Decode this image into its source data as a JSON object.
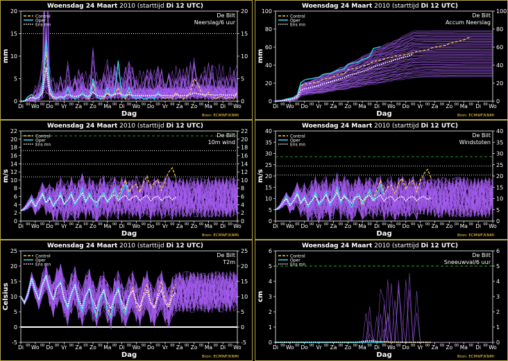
{
  "header": {
    "prefix": "Woensdag",
    "date": "24 Maart",
    "year": "2010",
    "run": "(starttijd",
    "run_bold": "Di 12 UTC)"
  },
  "location": "De Bilt",
  "source": "Bron: ECMWF/KNMI",
  "xlabel": "Dag",
  "day_labels": [
    "Di",
    "Wo",
    "Do",
    "Vr",
    "Za",
    "Zo",
    "Ma",
    "Di",
    "Wo",
    "Do",
    "Vr",
    "Za",
    "Zo",
    "Ma",
    "Di",
    "Wo"
  ],
  "hour_label": "00",
  "legend": [
    "Control",
    "Oper",
    "Ens mn"
  ],
  "colors": {
    "background": "#000000",
    "frame": "#b8a84a",
    "ensemble": "#a45cf0",
    "control": "#ffd24a",
    "oper": "#2fd0e8",
    "ens_mean": "#ffffff",
    "threshold_green": "#22b022",
    "gridline": "#c8c8c8",
    "source": "#ffd24a"
  },
  "chart_data": [
    {
      "type": "line",
      "panel": "precip-6h",
      "variable": "Neerslag/6 uur",
      "ylabel": "mm",
      "ylim": [
        0,
        20
      ],
      "yticks": [
        0,
        5,
        10,
        15,
        20
      ],
      "threshold_lines": [
        {
          "value": 15,
          "style": "dotted",
          "color": "white"
        }
      ],
      "series": [
        {
          "name": "Control",
          "values": [
            0,
            0,
            0.5,
            1,
            0.5,
            1,
            2,
            11,
            2,
            0.5,
            0.5,
            1,
            0.5,
            3,
            1,
            0.5,
            1,
            2,
            1,
            0.5,
            4,
            1,
            0.5,
            0.5,
            2,
            1,
            1.5,
            3,
            1,
            0.5,
            2,
            1,
            0.5,
            1,
            0.5,
            0.5,
            1,
            0.5,
            2,
            1,
            0.5,
            1,
            0.5,
            2,
            1,
            0.5,
            1,
            2,
            5,
            4,
            2,
            1,
            2,
            1,
            0.5,
            1,
            1,
            0.5,
            1,
            0.5,
            2
          ]
        },
        {
          "name": "Oper",
          "values": [
            0,
            0,
            1,
            1.5,
            0.5,
            1,
            3,
            13.5,
            3,
            1,
            0.5,
            1,
            0.5,
            3,
            1,
            0.5,
            1,
            2,
            1,
            1,
            5,
            1,
            0.5,
            1,
            3,
            1,
            2,
            9,
            1,
            1,
            3,
            1,
            0.5,
            1,
            0.5,
            0.5,
            1,
            0.5,
            2,
            1
          ]
        },
        {
          "name": "Ens mn",
          "values": [
            0,
            0,
            0.5,
            0.8,
            0.6,
            0.8,
            1.8,
            7.5,
            1.8,
            0.9,
            0.8,
            1,
            0.9,
            1.5,
            1.2,
            1,
            1.2,
            1.5,
            1.2,
            1.1,
            2,
            1.3,
            1.1,
            1.1,
            1.6,
            1.3,
            1.5,
            1.8,
            1.4,
            1.3,
            1.5,
            1.3,
            1.2,
            1.3,
            1.2,
            1.2,
            1.3,
            1.2,
            1.5,
            1.3,
            1.2,
            1.3,
            1.2,
            1.4,
            1.3,
            1.2,
            1.3,
            1.5,
            1.8,
            1.7,
            1.5,
            1.4,
            1.5,
            1.4,
            1.3,
            1.4,
            1.4,
            1.3,
            1.4,
            1.3,
            1.5
          ]
        }
      ]
    },
    {
      "type": "line",
      "panel": "accum-precip",
      "variable": "Accum Neerslag",
      "ylabel": "mm",
      "ylim": [
        0,
        100
      ],
      "yticks": [
        0,
        20,
        40,
        60,
        80,
        100
      ],
      "threshold_lines": [],
      "series": [
        {
          "name": "Control",
          "values": [
            0,
            0,
            0.5,
            2,
            2.5,
            4,
            6,
            17,
            19,
            19.5,
            20,
            21,
            21.5,
            24,
            25,
            25.5,
            27,
            29,
            30,
            30.5,
            35,
            36,
            36.5,
            37,
            39,
            40,
            41.5,
            44,
            45,
            45.5,
            47,
            48,
            48.5,
            50,
            50.5,
            51,
            52,
            52.5,
            54,
            55,
            55.5,
            56.5,
            57,
            59,
            60,
            60.5,
            61.5,
            62,
            64,
            65,
            66,
            67,
            68,
            70,
            71
          ]
        },
        {
          "name": "Oper",
          "values": [
            0,
            0,
            1,
            2.5,
            3,
            4,
            7,
            20.5,
            23.5,
            24.5,
            25,
            26,
            26.5,
            29.5,
            30.5,
            31,
            32,
            34,
            35,
            36,
            41,
            42,
            42.5,
            43.5,
            46.5,
            47.5,
            49.5,
            58.5,
            59.5,
            60.5
          ]
        },
        {
          "name": "Ens mn",
          "values": [
            0,
            0,
            0.5,
            1.3,
            1.9,
            2.7,
            4.5,
            12,
            13.8,
            14.7,
            15.5,
            16.5,
            17.4,
            18.9,
            20.1,
            21.1,
            22.3,
            23.8,
            25,
            26.1,
            28.1,
            29.4,
            30.5,
            31.6,
            33.2,
            34.5,
            36,
            37.8,
            39.2,
            40.5,
            42,
            43.3,
            44.5,
            45.8,
            47,
            48.2,
            49.5,
            50.7,
            52.2
          ]
        }
      ]
    },
    {
      "type": "line",
      "panel": "wind-10m",
      "variable": "10m wind",
      "ylabel": "m/s",
      "ylim": [
        0,
        22
      ],
      "yticks": [
        0,
        2,
        4,
        6,
        8,
        10,
        12,
        14,
        16,
        18,
        20,
        22
      ],
      "threshold_lines": [
        {
          "value": 10.8,
          "style": "dotted",
          "color": "white"
        },
        {
          "value": 13.9,
          "style": "dotted",
          "color": "white"
        },
        {
          "value": 17.2,
          "style": "dotted",
          "color": "white"
        },
        {
          "value": 20.8,
          "style": "dashed",
          "color": "green"
        }
      ],
      "series": [
        {
          "name": "Control",
          "values": [
            2.5,
            3,
            4,
            5,
            3.5,
            5,
            6.5,
            4.5,
            5.5,
            3.5,
            5,
            6.5,
            4,
            5,
            6.5,
            4,
            5.5,
            8,
            5,
            6.5,
            5,
            3.5,
            6,
            6.5,
            4.5,
            6,
            7.5,
            6,
            8,
            10,
            7,
            8.5,
            9,
            7,
            9.5,
            11,
            8,
            9.5,
            10,
            7.5,
            10,
            12,
            13,
            10.5
          ]
        },
        {
          "name": "Oper",
          "values": [
            2.5,
            3,
            4,
            5.5,
            3.5,
            5,
            7,
            4.5,
            6,
            3.5,
            5,
            7,
            4,
            5,
            7,
            4,
            5.5,
            8,
            4.5,
            7,
            5,
            3.5,
            6,
            7,
            4.5,
            6.5,
            8,
            5,
            7,
            9,
            6
          ]
        },
        {
          "name": "Ens mn",
          "values": [
            2.5,
            3,
            4,
            5,
            3.5,
            5,
            6.5,
            4.5,
            5.5,
            3.8,
            5,
            6.2,
            4.3,
            5.2,
            6.3,
            4.5,
            5.5,
            6.8,
            4.8,
            6,
            5.2,
            4.5,
            5.8,
            6.2,
            4.8,
            5.8,
            6.5,
            5,
            5.8,
            6.3,
            5,
            5.8,
            6.2,
            5,
            5.8,
            6.2,
            5,
            5.8,
            6,
            5,
            5.8,
            6,
            5.2,
            5.8
          ]
        }
      ]
    },
    {
      "type": "line",
      "panel": "gusts",
      "variable": "Windstoten",
      "ylabel": "m/s",
      "ylim": [
        0,
        40
      ],
      "yticks": [
        0,
        5,
        10,
        15,
        20,
        25,
        30,
        35,
        40
      ],
      "threshold_lines": [
        {
          "value": 20.4,
          "style": "dotted",
          "color": "white"
        },
        {
          "value": 24.4,
          "style": "dotted",
          "color": "white"
        },
        {
          "value": 28.6,
          "style": "dashed",
          "color": "green"
        }
      ],
      "series": [
        {
          "name": "Control",
          "values": [
            5,
            6,
            8,
            10,
            7,
            9,
            12,
            8,
            10,
            6,
            9,
            12,
            7,
            9,
            12,
            7,
            10,
            14,
            8,
            11,
            9,
            6,
            10,
            11,
            7,
            10,
            13,
            10,
            14,
            18,
            12,
            15,
            16,
            12,
            17,
            19,
            14,
            17,
            18,
            13,
            18,
            21,
            23,
            19
          ]
        },
        {
          "name": "Oper",
          "values": [
            5,
            6,
            8,
            11,
            7,
            9,
            13,
            8,
            11,
            6,
            9,
            13,
            7,
            9,
            13,
            7,
            10,
            15,
            8,
            12,
            9,
            6,
            11,
            12,
            8,
            11,
            14,
            9,
            12,
            16,
            11
          ]
        },
        {
          "name": "Ens mn",
          "values": [
            5,
            6,
            8,
            10,
            7,
            9,
            12,
            8,
            10,
            7,
            9,
            11,
            8,
            9.5,
            11.5,
            8,
            10,
            12.5,
            9,
            11,
            9.5,
            8,
            10.5,
            11,
            9,
            10.5,
            11.5,
            9,
            10.5,
            11.5,
            9,
            10.5,
            11,
            9,
            10.5,
            11,
            9,
            10.5,
            11,
            9,
            10.5,
            11,
            9.5,
            10.5
          ]
        }
      ]
    },
    {
      "type": "line",
      "panel": "t2m",
      "variable": "T2m",
      "ylabel": "Celsius",
      "ylim": [
        -5,
        25
      ],
      "yticks": [
        -5,
        0,
        5,
        10,
        15,
        20,
        25
      ],
      "threshold_lines": [
        {
          "value": 0,
          "style": "solid",
          "color": "white"
        }
      ],
      "series": [
        {
          "name": "Control",
          "values": [
            10,
            8,
            11,
            16,
            12,
            9,
            14,
            17,
            12,
            9,
            13,
            15,
            9,
            6,
            11,
            14,
            8,
            5,
            10,
            13,
            7,
            4,
            9,
            12,
            6,
            4,
            10,
            13,
            7,
            5,
            10,
            13,
            7,
            5,
            11,
            14,
            8,
            6,
            11,
            15,
            9,
            7,
            12,
            14
          ]
        },
        {
          "name": "Oper",
          "values": [
            10,
            8,
            11,
            16,
            12,
            9,
            14,
            17,
            12,
            9,
            13,
            15,
            9,
            6,
            11,
            14,
            8,
            5,
            10,
            13,
            7,
            3,
            9,
            12,
            5,
            3,
            10,
            13,
            6,
            4,
            10
          ]
        },
        {
          "name": "Ens mn",
          "values": [
            10,
            8,
            11,
            16,
            12,
            9,
            14,
            16.5,
            12,
            9,
            13,
            14.5,
            9.5,
            7,
            11,
            13.5,
            9,
            6.5,
            10.5,
            12.5,
            8.5,
            6,
            10,
            12,
            8,
            6,
            10,
            12,
            8,
            6,
            10,
            12,
            8,
            6.5,
            10,
            12,
            8,
            6.5,
            10,
            12,
            8,
            6.5,
            10,
            11.5
          ]
        }
      ]
    },
    {
      "type": "line",
      "panel": "snow-6h",
      "variable": "Sneeuwval/6 uur",
      "ylabel": "cm",
      "ylim": [
        0,
        6
      ],
      "yticks": [
        0,
        1,
        2,
        3,
        4,
        5,
        6
      ],
      "threshold_lines": [
        {
          "value": 5,
          "style": "dashed",
          "color": "green"
        }
      ],
      "series": [
        {
          "name": "Control",
          "values": [
            0,
            0,
            0,
            0,
            0,
            0,
            0,
            0,
            0,
            0,
            0,
            0,
            0,
            0,
            0,
            0,
            0,
            0,
            0,
            0,
            0,
            0,
            0,
            0,
            0,
            0,
            0,
            0,
            0,
            0,
            0,
            0,
            0,
            0,
            0,
            0,
            0,
            0,
            0,
            0,
            0,
            0,
            0,
            0
          ]
        },
        {
          "name": "Oper",
          "values": [
            0,
            0,
            0,
            0,
            0,
            0,
            0,
            0,
            0,
            0,
            0,
            0,
            0,
            0,
            0,
            0,
            0,
            0,
            0,
            0,
            0,
            0,
            0,
            0,
            0,
            0,
            0,
            0,
            0,
            0,
            0
          ]
        },
        {
          "name": "Ens mn",
          "values": [
            0,
            0,
            0,
            0,
            0,
            0,
            0,
            0,
            0,
            0,
            0,
            0,
            0,
            0,
            0,
            0,
            0,
            0,
            0,
            0,
            0,
            0,
            0,
            0.02,
            0.05,
            0.08,
            0.1,
            0.08,
            0.05,
            0.04,
            0.05,
            0.03,
            0.02,
            0.02,
            0.01,
            0.01,
            0,
            0,
            0,
            0,
            0,
            0,
            0,
            0
          ]
        }
      ]
    }
  ]
}
